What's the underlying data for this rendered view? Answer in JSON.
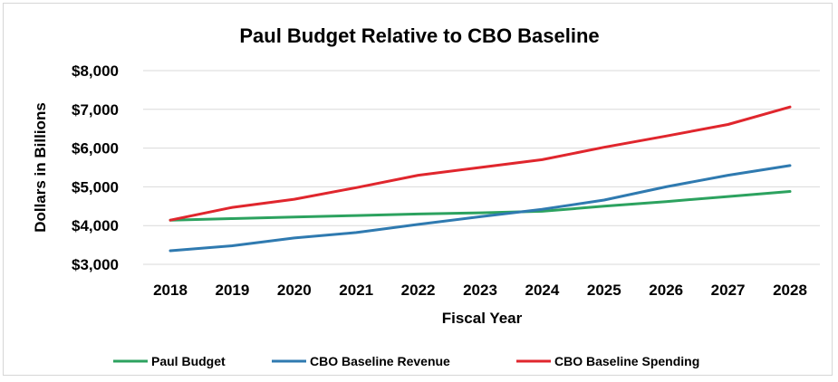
{
  "chart_data": {
    "type": "line",
    "title": "Paul Budget Relative to CBO Baseline",
    "xlabel": "Fiscal Year",
    "ylabel": "Dollars in Billions",
    "x": [
      "2018",
      "2019",
      "2020",
      "2021",
      "2022",
      "2023",
      "2024",
      "2025",
      "2026",
      "2027",
      "2028"
    ],
    "ylim": [
      3000,
      8000
    ],
    "yticks": [
      "$3,000",
      "$4,000",
      "$5,000",
      "$6,000",
      "$7,000",
      "$8,000"
    ],
    "ytick_values": [
      3000,
      4000,
      5000,
      6000,
      7000,
      8000
    ],
    "grid": true,
    "legend_position": "bottom",
    "series": [
      {
        "name": "Paul Budget",
        "color": "#2ca25f",
        "values": [
          4140,
          4180,
          4220,
          4260,
          4300,
          4330,
          4370,
          4500,
          4620,
          4750,
          4880
        ]
      },
      {
        "name": "CBO Baseline Revenue",
        "color": "#2f7ab0",
        "values": [
          3350,
          3480,
          3680,
          3820,
          4030,
          4230,
          4420,
          4660,
          5000,
          5300,
          5550
        ]
      },
      {
        "name": "CBO Baseline Spending",
        "color": "#e0262d",
        "values": [
          4140,
          4470,
          4680,
          4980,
          5300,
          5500,
          5700,
          6020,
          6310,
          6610,
          7060
        ]
      }
    ]
  }
}
